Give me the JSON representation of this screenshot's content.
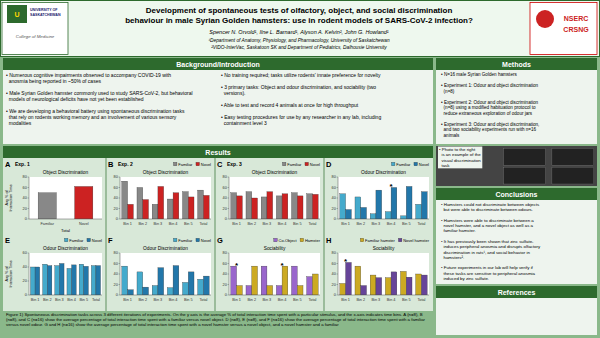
{
  "chart_data": [
    {
      "type": "bar",
      "panel": "A",
      "subtitle": "Exp. 1",
      "title": "Object Discrimination",
      "categories": [
        "Familiar",
        "Novel"
      ],
      "values": [
        50,
        62
      ],
      "colors": [
        "#888888",
        "#cc2222"
      ],
      "y_label": "Avg % of\nInteraction Time",
      "x_label": "Total",
      "ylim": [
        0,
        80
      ],
      "yticks": [
        0,
        20,
        40,
        60,
        80
      ]
    },
    {
      "type": "bar",
      "panel": "B",
      "subtitle": "Exp. 2",
      "title": "Object Discrimination",
      "categories": [
        "Bin 1",
        "Bin 2",
        "Bin 3",
        "Bin 4",
        "Bin 5",
        "Total"
      ],
      "series": [
        {
          "name": "Familiar",
          "color": "#888888",
          "values": [
            72,
            60,
            28,
            38,
            52,
            55
          ]
        },
        {
          "name": "Novel",
          "color": "#cc2222",
          "values": [
            28,
            37,
            62,
            50,
            42,
            45
          ]
        }
      ],
      "legend": "upper right",
      "ylim": [
        0,
        80
      ],
      "yticks": [
        0,
        20,
        40,
        60,
        80
      ]
    },
    {
      "type": "bar",
      "panel": "C",
      "subtitle": "Exp. 3",
      "title": "Object Discrimination",
      "categories": [
        "Bin 1",
        "Bin 2",
        "Bin 3",
        "Bin 4",
        "Bin 5",
        "Total"
      ],
      "series": [
        {
          "name": "Familiar",
          "color": "#888888",
          "values": [
            50,
            52,
            42,
            44,
            50,
            48
          ]
        },
        {
          "name": "Novel",
          "color": "#cc2222",
          "values": [
            44,
            40,
            52,
            48,
            44,
            47
          ]
        }
      ],
      "legend": "upper right",
      "ylim": [
        0,
        80
      ],
      "yticks": [
        0,
        20,
        40,
        60,
        80
      ]
    },
    {
      "type": "bar",
      "panel": "D",
      "title": "Odour Discrimination",
      "categories": [
        "Bin 1",
        "Bin 2",
        "Bin 3",
        "Bin 4",
        "Bin 5",
        "Total"
      ],
      "series": [
        {
          "name": "Familiar",
          "color": "#44aacc",
          "values": [
            48,
            42,
            10,
            14,
            6,
            28
          ]
        },
        {
          "name": "Novel",
          "color": "#2277aa",
          "values": [
            18,
            22,
            55,
            60,
            62,
            52
          ]
        }
      ],
      "legend": "upper right",
      "ylim": [
        0,
        80
      ],
      "yticks": [
        0,
        20,
        40,
        60,
        80
      ],
      "annotations": [
        {
          "text": "*",
          "x": "Bin 4"
        }
      ]
    },
    {
      "type": "bar",
      "panel": "E",
      "title": "Odour Discrimination",
      "categories": [
        "Bin 1",
        "Bin 2",
        "Bin 3",
        "Bin 4",
        "Bin 5",
        "Total"
      ],
      "series": [
        {
          "name": "Familiar",
          "color": "#44aacc",
          "values": [
            40,
            44,
            42,
            38,
            44,
            42
          ]
        },
        {
          "name": "Novel",
          "color": "#2277aa",
          "values": [
            40,
            42,
            45,
            43,
            41,
            42
          ]
        }
      ],
      "legend": "upper right",
      "y_label": "Avg % of\nInteraction Time",
      "ylim": [
        0,
        60
      ],
      "yticks": [
        0,
        20,
        40,
        60
      ]
    },
    {
      "type": "bar",
      "panel": "F",
      "title": "Odour Discrimination",
      "categories": [
        "Bin 1",
        "Bin 2",
        "Bin 3",
        "Bin 4",
        "Bin 5",
        "Total"
      ],
      "series": [
        {
          "name": "Familiar",
          "color": "#44aacc",
          "values": [
            55,
            44,
            18,
            14,
            24,
            30
          ]
        },
        {
          "name": "Novel",
          "color": "#2277aa",
          "values": [
            10,
            15,
            52,
            56,
            44,
            36
          ]
        }
      ],
      "legend": "upper right",
      "ylim": [
        0,
        80
      ],
      "yticks": [
        0,
        20,
        40,
        60,
        80
      ]
    },
    {
      "type": "bar",
      "panel": "G",
      "title": "Sociability",
      "categories": [
        "Bin 1",
        "Bin 2",
        "Bin 3",
        "Bin 4",
        "Bin 5",
        "Total"
      ],
      "series": [
        {
          "name": "Co-Object",
          "color": "#9966cc",
          "values": [
            55,
            18,
            55,
            18,
            55,
            35
          ]
        },
        {
          "name": "Hamster",
          "color": "#ccaa22",
          "values": [
            18,
            55,
            18,
            55,
            18,
            40
          ]
        }
      ],
      "legend": "upper right",
      "ylim": [
        0,
        80
      ],
      "yticks": [
        0,
        20,
        40,
        60,
        80
      ],
      "annotations": [
        {
          "text": "*",
          "x": "Bin 1"
        },
        {
          "text": "*",
          "x": "Bin 4"
        }
      ]
    },
    {
      "type": "bar",
      "panel": "H",
      "title": "Sociability",
      "categories": [
        "Bin 1",
        "Bin 2",
        "Bin 3",
        "Bin 4",
        "Bin 5",
        "Total"
      ],
      "series": [
        {
          "name": "Familiar hamster",
          "color": "#ccaa22",
          "values": [
            22,
            55,
            38,
            33,
            45,
            40
          ]
        },
        {
          "name": "Novel hamster",
          "color": "#664499",
          "values": [
            62,
            18,
            33,
            44,
            34,
            38
          ]
        }
      ],
      "legend": "upper right",
      "ylim": [
        0,
        80
      ],
      "yticks": [
        0,
        20,
        40,
        60,
        80
      ],
      "annotations": [
        {
          "text": "*",
          "x": "Bin 1"
        }
      ]
    }
  ],
  "poster": {
    "background_color": "#8ab88a",
    "header_color": "#2d6a2d",
    "panel_color": "#eef4ee",
    "title_lines": [
      "Development of spontaneous tests of olfactory, object, and social discrimination",
      "behaviour in male Syrian Golden hamsters: use in rodent models of SARS-CoV-2 infection?"
    ],
    "authors": "Spencer N. Orvold¹, Ilne L. Barnard¹, Alyson A. Kelvin², John G. Howland¹",
    "affiliations": [
      "¹Department of Anatomy, Physiology, and Pharmacology, University of Saskatchewan",
      "²VIDO-InterVac, Saskatoon SK and Department of Pediatrics, Dalhousie University"
    ],
    "left_logo": [
      "U",
      "UNIVERSITY OF",
      "SASKATCHEWAN",
      "College of Medicine"
    ],
    "right_logo": [
      "NSERC",
      "CRSNG"
    ],
    "background": {
      "header": "Background/Introduction",
      "columns": [
        "• Numerous cognitive impairments observed to accompany COVID-19 with\n  anosmia being reported in ~50% of cases\n\n• Male Syrian Golden hamster commonly used to study SARS-CoV-2, but behavioral\n  models of neurological deficits have not yet been established\n\n• We are developing a behavioral battery using spontaneous discrimination tasks\n  that rely on rodents working memory and an involvement of various sensory\n  modalities",
        "• No training required; tasks utilize rodents' innate preference for novelty\n\n• 3 primary tasks: Object and odour discrimination, and sociability (two\n  versions).\n\n• Able to test and record 4 animals at once for high throughput\n\n• Easy testing procedures for use by any researcher in any lab, including\n  containment level 3"
      ]
    },
    "methods": {
      "header": "Methods",
      "text": "• N=16 male Syrian Golden hamsters\n\n• Experiment 1: Odour and object discrimination\n  (n=8)\n\n• Experiment 2: Odour and object discrimination\n  (n=8) using a modified habituation protocol to\n  reduce extraneous exploration of odour jars\n\n• Experiment 3: Odour and object discrimination,\n  and two sociability experiments run with n=16\n  animals"
    },
    "results_header": "Results",
    "photo_caption": "• Photo to the right\n  is an example of the\n  visual discrimination\n  task",
    "conclusions": {
      "header": "Conclusions",
      "text": "• Hamsters could not discriminate between objects\n  but were able to discriminate between odours.\n\n• Hamsters were able to discriminate between a\n  novel hamster, and a novel object as well as a\n  familiar hamster.\n\n• It has previously been shown that zinc sulfate-\n  induces peripheral anosmia and disrupts olfactory\n  discrimination in rats¹, and social behavior in\n  hamsters².\n\n• Future experiments in our lab will help verify if\n  these tasks are sensitive to peripheral anosmia\n  induced by zinc sulfate."
    },
    "references_header": "References",
    "caption": "Figure 1) Spontaneous discrimination tasks across 3 different iterations of experiments. On the y axis is the average % of total interaction time spent with a particular stimulus, and the x-axis indicates time bins. A (n=8), B (n=8), and C (n=16) show the average percentage of total interaction time spent with a familiar versus novel object. D (n=8), E (n=8), and F (n=16) show the average percentage of total interaction time spent with a familiar versus novel odour. G and H (n=16) show the average percentage of total interaction time spent with a novel hamster versus a novel object, and a novel hamster and a familiar"
  }
}
